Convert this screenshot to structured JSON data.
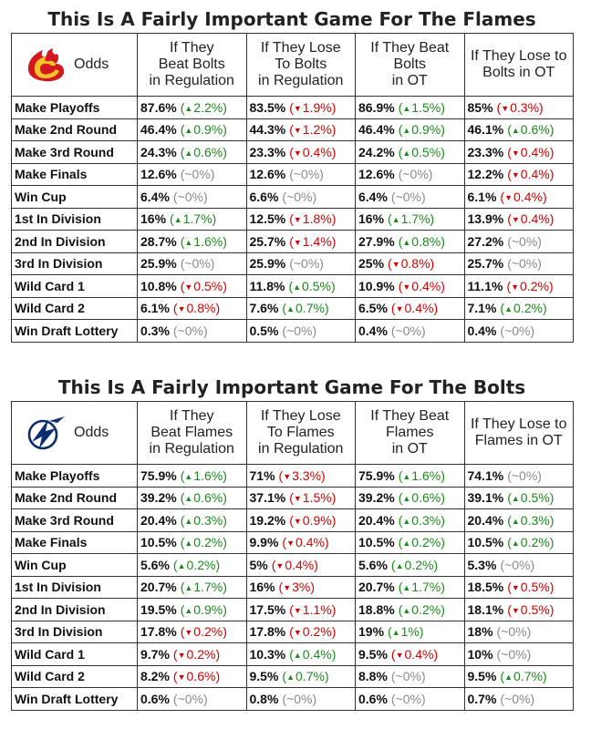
{
  "colors": {
    "up": "#1c8a1c",
    "down": "#d40000",
    "flat": "#8a8a8a"
  },
  "panels": [
    {
      "title": "This Is A Fairly Important Game For The Flames",
      "logo": "flames-logo-icon",
      "lead_header": "Odds",
      "headers": [
        [
          "If They",
          "Beat Bolts",
          "in Regulation"
        ],
        [
          "If They Lose",
          "To Bolts",
          "in Regulation"
        ],
        [
          "If They Beat",
          "Bolts",
          "in OT"
        ],
        [
          "If They Lose to",
          "Bolts in OT"
        ]
      ],
      "rows": [
        {
          "label": "Make Playoffs",
          "cells": [
            {
              "value": "87.6%",
              "dir": "up",
              "delta": "2.2%"
            },
            {
              "value": "83.5%",
              "dir": "down",
              "delta": "1.9%"
            },
            {
              "value": "86.9%",
              "dir": "up",
              "delta": "1.5%"
            },
            {
              "value": "85%",
              "dir": "down",
              "delta": "0.3%"
            }
          ]
        },
        {
          "label": "Make 2nd Round",
          "cells": [
            {
              "value": "46.4%",
              "dir": "up",
              "delta": "0.9%"
            },
            {
              "value": "44.3%",
              "dir": "down",
              "delta": "1.2%"
            },
            {
              "value": "46.4%",
              "dir": "up",
              "delta": "0.9%"
            },
            {
              "value": "46.1%",
              "dir": "up",
              "delta": "0.6%"
            }
          ]
        },
        {
          "label": "Make 3rd Round",
          "cells": [
            {
              "value": "24.3%",
              "dir": "up",
              "delta": "0.6%"
            },
            {
              "value": "23.3%",
              "dir": "down",
              "delta": "0.4%"
            },
            {
              "value": "24.2%",
              "dir": "up",
              "delta": "0.5%"
            },
            {
              "value": "23.3%",
              "dir": "down",
              "delta": "0.4%"
            }
          ]
        },
        {
          "label": "Make Finals",
          "cells": [
            {
              "value": "12.6%",
              "dir": "flat",
              "delta": "~0%"
            },
            {
              "value": "12.6%",
              "dir": "flat",
              "delta": "~0%"
            },
            {
              "value": "12.6%",
              "dir": "flat",
              "delta": "~0%"
            },
            {
              "value": "12.2%",
              "dir": "down",
              "delta": "0.4%"
            }
          ]
        },
        {
          "label": "Win Cup",
          "cells": [
            {
              "value": "6.4%",
              "dir": "flat",
              "delta": "~0%"
            },
            {
              "value": "6.6%",
              "dir": "flat",
              "delta": "~0%"
            },
            {
              "value": "6.4%",
              "dir": "flat",
              "delta": "~0%"
            },
            {
              "value": "6.1%",
              "dir": "down",
              "delta": "0.4%"
            }
          ]
        },
        {
          "label": "1st In Division",
          "cells": [
            {
              "value": "16%",
              "dir": "up",
              "delta": "1.7%"
            },
            {
              "value": "12.5%",
              "dir": "down",
              "delta": "1.8%"
            },
            {
              "value": "16%",
              "dir": "up",
              "delta": "1.7%"
            },
            {
              "value": "13.9%",
              "dir": "down",
              "delta": "0.4%"
            }
          ]
        },
        {
          "label": "2nd In Division",
          "cells": [
            {
              "value": "28.7%",
              "dir": "up",
              "delta": "1.6%"
            },
            {
              "value": "25.7%",
              "dir": "down",
              "delta": "1.4%"
            },
            {
              "value": "27.9%",
              "dir": "up",
              "delta": "0.8%"
            },
            {
              "value": "27.2%",
              "dir": "flat",
              "delta": "~0%"
            }
          ]
        },
        {
          "label": "3rd In Division",
          "cells": [
            {
              "value": "25.9%",
              "dir": "flat",
              "delta": "~0%"
            },
            {
              "value": "25.9%",
              "dir": "flat",
              "delta": "~0%"
            },
            {
              "value": "25%",
              "dir": "down",
              "delta": "0.8%"
            },
            {
              "value": "25.7%",
              "dir": "flat",
              "delta": "~0%"
            }
          ]
        },
        {
          "label": "Wild Card 1",
          "cells": [
            {
              "value": "10.8%",
              "dir": "down",
              "delta": "0.5%"
            },
            {
              "value": "11.8%",
              "dir": "up",
              "delta": "0.5%"
            },
            {
              "value": "10.9%",
              "dir": "down",
              "delta": "0.4%"
            },
            {
              "value": "11.1%",
              "dir": "down",
              "delta": "0.2%"
            }
          ]
        },
        {
          "label": "Wild Card 2",
          "cells": [
            {
              "value": "6.1%",
              "dir": "down",
              "delta": "0.8%"
            },
            {
              "value": "7.6%",
              "dir": "up",
              "delta": "0.7%"
            },
            {
              "value": "6.5%",
              "dir": "down",
              "delta": "0.4%"
            },
            {
              "value": "7.1%",
              "dir": "up",
              "delta": "0.2%"
            }
          ]
        },
        {
          "label": "Win Draft Lottery",
          "cells": [
            {
              "value": "0.3%",
              "dir": "flat",
              "delta": "~0%"
            },
            {
              "value": "0.5%",
              "dir": "flat",
              "delta": "~0%"
            },
            {
              "value": "0.4%",
              "dir": "flat",
              "delta": "~0%"
            },
            {
              "value": "0.4%",
              "dir": "flat",
              "delta": "~0%"
            }
          ]
        }
      ]
    },
    {
      "title": "This Is A Fairly Important Game For The Bolts",
      "logo": "lightning-logo-icon",
      "lead_header": "Odds",
      "headers": [
        [
          "If They",
          "Beat Flames",
          "in Regulation"
        ],
        [
          "If They Lose",
          "To Flames",
          "in Regulation"
        ],
        [
          "If They Beat",
          "Flames",
          "in OT"
        ],
        [
          "If They Lose to",
          "Flames in OT"
        ]
      ],
      "rows": [
        {
          "label": "Make Playoffs",
          "cells": [
            {
              "value": "75.9%",
              "dir": "up",
              "delta": "1.6%"
            },
            {
              "value": "71%",
              "dir": "down",
              "delta": "3.3%"
            },
            {
              "value": "75.9%",
              "dir": "up",
              "delta": "1.6%"
            },
            {
              "value": "74.1%",
              "dir": "flat",
              "delta": "~0%"
            }
          ]
        },
        {
          "label": "Make 2nd Round",
          "cells": [
            {
              "value": "39.2%",
              "dir": "up",
              "delta": "0.6%"
            },
            {
              "value": "37.1%",
              "dir": "down",
              "delta": "1.5%"
            },
            {
              "value": "39.2%",
              "dir": "up",
              "delta": "0.6%"
            },
            {
              "value": "39.1%",
              "dir": "up",
              "delta": "0.5%"
            }
          ]
        },
        {
          "label": "Make 3rd Round",
          "cells": [
            {
              "value": "20.4%",
              "dir": "up",
              "delta": "0.3%"
            },
            {
              "value": "19.2%",
              "dir": "down",
              "delta": "0.9%"
            },
            {
              "value": "20.4%",
              "dir": "up",
              "delta": "0.3%"
            },
            {
              "value": "20.4%",
              "dir": "up",
              "delta": "0.3%"
            }
          ]
        },
        {
          "label": "Make Finals",
          "cells": [
            {
              "value": "10.5%",
              "dir": "up",
              "delta": "0.2%"
            },
            {
              "value": "9.9%",
              "dir": "down",
              "delta": "0.4%"
            },
            {
              "value": "10.5%",
              "dir": "up",
              "delta": "0.2%"
            },
            {
              "value": "10.5%",
              "dir": "up",
              "delta": "0.2%"
            }
          ]
        },
        {
          "label": "Win Cup",
          "cells": [
            {
              "value": "5.6%",
              "dir": "up",
              "delta": "0.2%"
            },
            {
              "value": "5%",
              "dir": "down",
              "delta": "0.4%"
            },
            {
              "value": "5.6%",
              "dir": "up",
              "delta": "0.2%"
            },
            {
              "value": "5.3%",
              "dir": "flat",
              "delta": "~0%"
            }
          ]
        },
        {
          "label": "1st In Division",
          "cells": [
            {
              "value": "20.7%",
              "dir": "up",
              "delta": "1.7%"
            },
            {
              "value": "16%",
              "dir": "down",
              "delta": "3%"
            },
            {
              "value": "20.7%",
              "dir": "up",
              "delta": "1.7%"
            },
            {
              "value": "18.5%",
              "dir": "down",
              "delta": "0.5%"
            }
          ]
        },
        {
          "label": "2nd In Division",
          "cells": [
            {
              "value": "19.5%",
              "dir": "up",
              "delta": "0.9%"
            },
            {
              "value": "17.5%",
              "dir": "down",
              "delta": "1.1%"
            },
            {
              "value": "18.8%",
              "dir": "up",
              "delta": "0.2%"
            },
            {
              "value": "18.1%",
              "dir": "down",
              "delta": "0.5%"
            }
          ]
        },
        {
          "label": "3rd In Division",
          "cells": [
            {
              "value": "17.8%",
              "dir": "down",
              "delta": "0.2%"
            },
            {
              "value": "17.8%",
              "dir": "down",
              "delta": "0.2%"
            },
            {
              "value": "19%",
              "dir": "up",
              "delta": "1%"
            },
            {
              "value": "18%",
              "dir": "flat",
              "delta": "~0%"
            }
          ]
        },
        {
          "label": "Wild Card 1",
          "cells": [
            {
              "value": "9.7%",
              "dir": "down",
              "delta": "0.2%"
            },
            {
              "value": "10.3%",
              "dir": "up",
              "delta": "0.4%"
            },
            {
              "value": "9.5%",
              "dir": "down",
              "delta": "0.4%"
            },
            {
              "value": "10%",
              "dir": "flat",
              "delta": "~0%"
            }
          ]
        },
        {
          "label": "Wild Card 2",
          "cells": [
            {
              "value": "8.2%",
              "dir": "down",
              "delta": "0.6%"
            },
            {
              "value": "9.5%",
              "dir": "up",
              "delta": "0.7%"
            },
            {
              "value": "8.8%",
              "dir": "flat",
              "delta": "~0%"
            },
            {
              "value": "9.5%",
              "dir": "up",
              "delta": "0.7%"
            }
          ]
        },
        {
          "label": "Win Draft Lottery",
          "cells": [
            {
              "value": "0.6%",
              "dir": "flat",
              "delta": "~0%"
            },
            {
              "value": "0.8%",
              "dir": "flat",
              "delta": "~0%"
            },
            {
              "value": "0.6%",
              "dir": "flat",
              "delta": "~0%"
            },
            {
              "value": "0.7%",
              "dir": "flat",
              "delta": "~0%"
            }
          ]
        }
      ]
    }
  ]
}
